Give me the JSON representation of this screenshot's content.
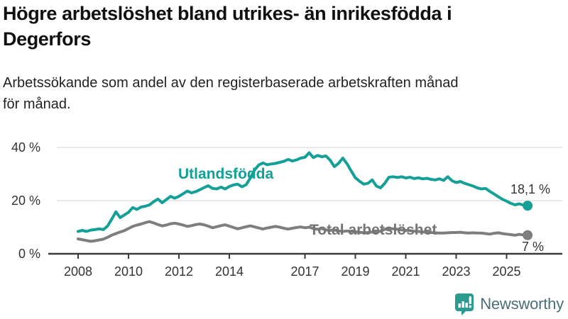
{
  "header": {
    "title_line1": "Högre arbetslöshet bland utrikes- än inrikesfödda i",
    "title_line2": "Degerfors",
    "subtitle_line1": "Arbetssökande som andel av den registerbaserade arbetskraften månad",
    "subtitle_line2": "för månad."
  },
  "branding": {
    "name": "Newsworthy",
    "icon": "newsworthy-speech-bubble-bar-chart-icon",
    "icon_color": "#2B9B8F",
    "text_color": "#4A6F7A"
  },
  "colors": {
    "accent_teal": "#14A096",
    "series_gray": "#7E7E7E",
    "series_gray_label": "#757575",
    "grid": "#DCDCDC",
    "axis": "#3A3A3A",
    "text": "#333333"
  },
  "chart_data": {
    "type": "line",
    "unit": "percent",
    "title": "Högre arbetslöshet bland utrikes- än inrikesfödda i Degerfors",
    "subtitle": "Arbetssökande som andel av den registerbaserade arbetskraften månad för månad.",
    "grid": "horizontal-only",
    "legend_position": "inline-labels",
    "x_axis": {
      "tick_years": [
        2008,
        2010,
        2012,
        2014,
        2017,
        2019,
        2021,
        2023,
        2025
      ],
      "tick_labels": [
        "2008",
        "2010",
        "2012",
        "2014",
        "2017",
        "2019",
        "2021",
        "2023",
        "2025"
      ],
      "range_years": [
        2008,
        2025.83
      ]
    },
    "y_axis": {
      "tick_values": [
        0,
        20,
        40
      ],
      "tick_labels": [
        "0 %",
        "20 %",
        "40 %"
      ],
      "range": [
        0,
        42
      ]
    },
    "series": [
      {
        "name": "Utlandsfödda",
        "color": "#14A096",
        "end_label": "18,1 %",
        "end_value": 18.1,
        "start_year": 2008,
        "step_months": 2,
        "values": [
          8.4,
          8.8,
          8.4,
          8.9,
          9.1,
          9.4,
          9.1,
          10.4,
          13.0,
          15.8,
          13.6,
          14.6,
          15.6,
          17.4,
          16.7,
          17.6,
          17.9,
          18.4,
          19.6,
          20.6,
          19.2,
          20.4,
          21.6,
          20.9,
          21.6,
          22.6,
          23.6,
          22.9,
          23.4,
          24.1,
          24.9,
          25.6,
          24.6,
          24.4,
          25.1,
          24.4,
          25.3,
          25.9,
          26.2,
          25.2,
          26.0,
          28.5,
          31.5,
          33.4,
          34.2,
          33.5,
          33.8,
          34.0,
          34.4,
          34.8,
          35.5,
          34.9,
          35.3,
          36.0,
          36.3,
          38.0,
          36.2,
          37.0,
          36.5,
          36.8,
          35.2,
          32.8,
          34.0,
          36.0,
          33.9,
          31.2,
          28.6,
          27.3,
          26.2,
          26.5,
          27.8,
          25.5,
          24.8,
          26.5,
          28.8,
          29.0,
          28.7,
          29.0,
          28.5,
          28.8,
          28.3,
          28.6,
          28.2,
          28.4,
          28.0,
          27.8,
          28.2,
          27.6,
          29.0,
          27.5,
          26.8,
          27.2,
          26.5,
          26.0,
          25.5,
          24.8,
          24.4,
          24.6,
          23.5,
          22.5,
          21.5,
          20.5,
          19.8,
          19.0,
          18.4,
          18.8,
          18.3,
          18.1
        ]
      },
      {
        "name": "Total arbetslöshet",
        "color": "#7E7E7E",
        "end_label": "7 %",
        "end_value": 7.0,
        "start_year": 2008,
        "step_months": 2,
        "values": [
          5.6,
          5.3,
          5.0,
          4.7,
          4.9,
          5.2,
          5.5,
          6.2,
          7.0,
          7.6,
          8.2,
          8.7,
          9.5,
          10.3,
          10.8,
          11.2,
          11.7,
          12.1,
          11.6,
          11.0,
          10.5,
          10.8,
          11.3,
          11.5,
          11.2,
          10.8,
          10.3,
          10.6,
          11.0,
          11.2,
          10.9,
          10.4,
          9.8,
          10.2,
          10.6,
          10.9,
          10.4,
          9.9,
          9.4,
          9.8,
          10.2,
          10.5,
          10.1,
          9.7,
          9.3,
          9.7,
          10.0,
          10.3,
          10.0,
          9.6,
          9.3,
          9.6,
          9.9,
          10.1,
          9.8,
          10.0,
          9.5,
          9.2,
          9.5,
          9.0,
          8.8,
          9.0,
          8.6,
          8.4,
          8.6,
          8.4,
          8.3,
          8.1,
          7.9,
          8.0,
          8.2,
          8.1,
          8.5,
          9.2,
          9.5,
          9.4,
          9.2,
          9.0,
          8.8,
          8.7,
          8.5,
          8.4,
          8.2,
          8.1,
          8.0,
          7.9,
          7.8,
          7.8,
          7.9,
          8.0,
          8.0,
          8.1,
          7.9,
          7.8,
          7.9,
          7.8,
          7.8,
          7.6,
          7.4,
          7.7,
          7.9,
          7.6,
          7.4,
          7.2,
          7.0,
          7.3,
          7.1,
          7.0
        ]
      }
    ]
  }
}
